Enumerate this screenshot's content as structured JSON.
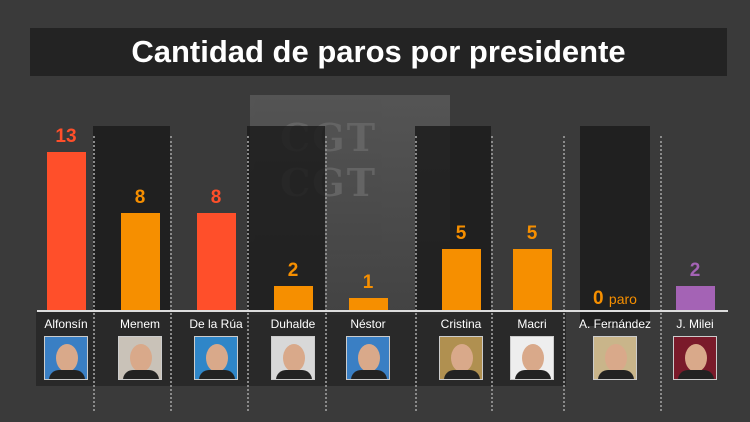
{
  "chart_data": {
    "type": "bar",
    "title": "Cantidad de paros por presidente",
    "categories": [
      "Alfonsín",
      "Menem",
      "De la Rúa",
      "Duhalde",
      "Néstor",
      "Cristina",
      "Macri",
      "A. Fernández",
      "J. Milei"
    ],
    "values": [
      13,
      8,
      8,
      2,
      1,
      5,
      5,
      0,
      2
    ],
    "value_labels": [
      "13",
      "8",
      "8",
      "2",
      "1",
      "5",
      "5",
      "0",
      "2"
    ],
    "zero_suffix": "paro",
    "colors": [
      "#FF4F2A",
      "#F68F00",
      "#FF4F2A",
      "#F68F00",
      "#F68F00",
      "#F68F00",
      "#F68F00",
      "#F68F00",
      "#A463B5"
    ],
    "photo_bg": [
      "#3a7fc4",
      "#c9c2b8",
      "#2f86c8",
      "#d8d8d8",
      "#3a7fc4",
      "#b09050",
      "#eeeeee",
      "#c9b58a",
      "#7a1a2a"
    ],
    "ylim": [
      0,
      13
    ],
    "xlabel": "",
    "ylabel": "",
    "grid": false,
    "background_sign": "CGT CGT"
  }
}
